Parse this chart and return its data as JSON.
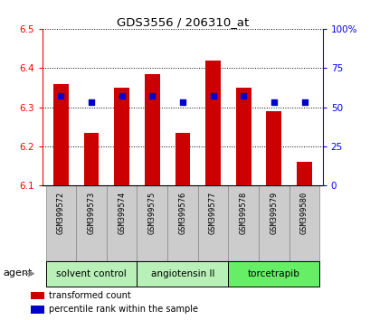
{
  "title": "GDS3556 / 206310_at",
  "samples": [
    "GSM399572",
    "GSM399573",
    "GSM399574",
    "GSM399575",
    "GSM399576",
    "GSM399577",
    "GSM399578",
    "GSM399579",
    "GSM399580"
  ],
  "bar_values": [
    6.36,
    6.235,
    6.35,
    6.385,
    6.235,
    6.42,
    6.35,
    6.29,
    6.16
  ],
  "percentile_values": [
    57,
    53,
    57,
    57,
    53,
    57,
    57,
    53,
    53
  ],
  "bar_color": "#cc0000",
  "dot_color": "#0000cc",
  "ylim_left": [
    6.1,
    6.5
  ],
  "ylim_right": [
    0,
    100
  ],
  "yticks_left": [
    6.1,
    6.2,
    6.3,
    6.4,
    6.5
  ],
  "yticks_right": [
    0,
    25,
    50,
    75,
    100
  ],
  "yticklabels_right": [
    "0",
    "25",
    "50",
    "75",
    "100%"
  ],
  "groups": [
    {
      "label": "solvent control",
      "indices": [
        0,
        1,
        2
      ],
      "color": "#b8f0b8"
    },
    {
      "label": "angiotensin II",
      "indices": [
        3,
        4,
        5
      ],
      "color": "#b8f0b8"
    },
    {
      "label": "torcetrapib",
      "indices": [
        6,
        7,
        8
      ],
      "color": "#66ee66"
    }
  ],
  "group_label": "agent",
  "legend_items": [
    {
      "label": "transformed count",
      "color": "#cc0000"
    },
    {
      "label": "percentile rank within the sample",
      "color": "#0000cc"
    }
  ],
  "bar_width": 0.5,
  "base_value": 6.1,
  "grid_color": "#000000",
  "bg_plot": "#ffffff",
  "bg_tick": "#cccccc"
}
